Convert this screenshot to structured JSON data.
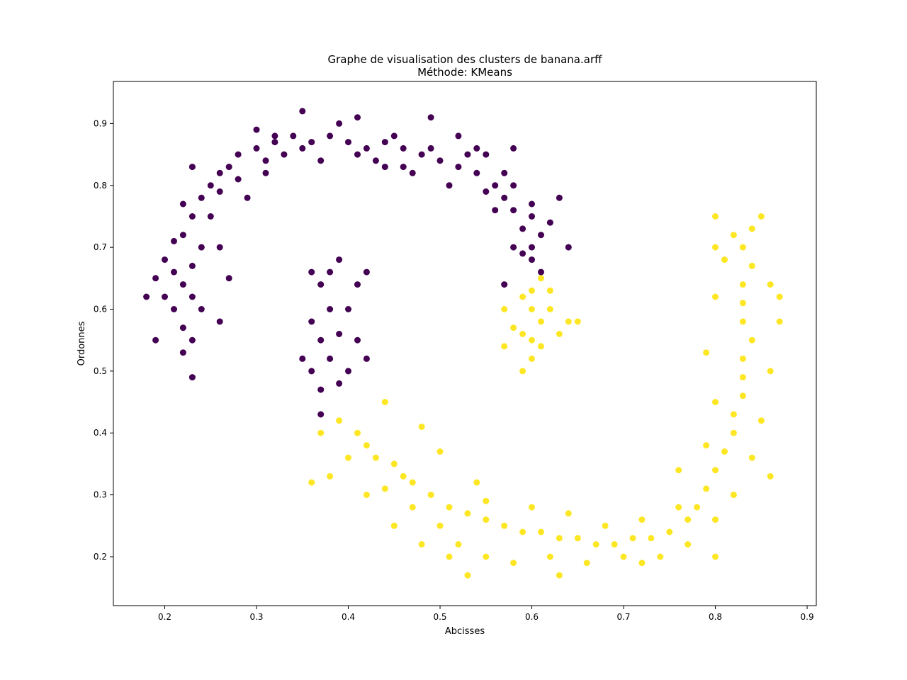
{
  "chart_data": {
    "type": "scatter",
    "title": "Graphe de visualisation des clusters de banana.arff",
    "subtitle": "Méthode: KMeans",
    "xlabel": "Abcisses",
    "ylabel": "Ordonnes",
    "xlim": [
      0.144,
      0.91
    ],
    "ylim": [
      0.121,
      0.968
    ],
    "xticks": [
      0.2,
      0.3,
      0.4,
      0.5,
      0.6,
      0.7,
      0.8,
      0.9
    ],
    "yticks": [
      0.2,
      0.3,
      0.4,
      0.5,
      0.6,
      0.7,
      0.8,
      0.9
    ],
    "grid": false,
    "colors": {
      "cluster_0": "#440154",
      "cluster_1": "#fde725",
      "axes": "#000000",
      "background": "#ffffff"
    },
    "series": [
      {
        "color": "#440154",
        "points": [
          [
            0.21,
            0.6
          ],
          [
            0.22,
            0.57
          ],
          [
            0.23,
            0.55
          ],
          [
            0.22,
            0.64
          ],
          [
            0.21,
            0.66
          ],
          [
            0.23,
            0.62
          ],
          [
            0.24,
            0.6
          ],
          [
            0.22,
            0.53
          ],
          [
            0.2,
            0.62
          ],
          [
            0.19,
            0.65
          ],
          [
            0.23,
            0.67
          ],
          [
            0.24,
            0.7
          ],
          [
            0.22,
            0.72
          ],
          [
            0.23,
            0.75
          ],
          [
            0.24,
            0.78
          ],
          [
            0.25,
            0.8
          ],
          [
            0.26,
            0.82
          ],
          [
            0.27,
            0.83
          ],
          [
            0.28,
            0.85
          ],
          [
            0.3,
            0.86
          ],
          [
            0.32,
            0.87
          ],
          [
            0.34,
            0.88
          ],
          [
            0.36,
            0.87
          ],
          [
            0.38,
            0.88
          ],
          [
            0.4,
            0.87
          ],
          [
            0.42,
            0.86
          ],
          [
            0.44,
            0.87
          ],
          [
            0.46,
            0.86
          ],
          [
            0.48,
            0.85
          ],
          [
            0.5,
            0.84
          ],
          [
            0.52,
            0.83
          ],
          [
            0.54,
            0.82
          ],
          [
            0.56,
            0.8
          ],
          [
            0.57,
            0.78
          ],
          [
            0.58,
            0.76
          ],
          [
            0.59,
            0.73
          ],
          [
            0.6,
            0.7
          ],
          [
            0.6,
            0.68
          ],
          [
            0.61,
            0.66
          ],
          [
            0.59,
            0.69
          ],
          [
            0.26,
            0.79
          ],
          [
            0.28,
            0.81
          ],
          [
            0.31,
            0.84
          ],
          [
            0.33,
            0.85
          ],
          [
            0.35,
            0.86
          ],
          [
            0.37,
            0.84
          ],
          [
            0.39,
            0.9
          ],
          [
            0.41,
            0.85
          ],
          [
            0.43,
            0.84
          ],
          [
            0.45,
            0.88
          ],
          [
            0.47,
            0.82
          ],
          [
            0.49,
            0.86
          ],
          [
            0.51,
            0.8
          ],
          [
            0.53,
            0.85
          ],
          [
            0.55,
            0.79
          ],
          [
            0.57,
            0.82
          ],
          [
            0.58,
            0.8
          ],
          [
            0.6,
            0.75
          ],
          [
            0.61,
            0.72
          ],
          [
            0.62,
            0.74
          ],
          [
            0.18,
            0.62
          ],
          [
            0.19,
            0.55
          ],
          [
            0.2,
            0.68
          ],
          [
            0.21,
            0.71
          ],
          [
            0.22,
            0.77
          ],
          [
            0.25,
            0.75
          ],
          [
            0.26,
            0.7
          ],
          [
            0.27,
            0.65
          ],
          [
            0.26,
            0.58
          ],
          [
            0.23,
            0.49
          ],
          [
            0.23,
            0.83
          ],
          [
            0.3,
            0.89
          ],
          [
            0.35,
            0.92
          ],
          [
            0.41,
            0.91
          ],
          [
            0.49,
            0.91
          ],
          [
            0.55,
            0.85
          ],
          [
            0.58,
            0.86
          ],
          [
            0.63,
            0.78
          ],
          [
            0.64,
            0.7
          ],
          [
            0.57,
            0.64
          ],
          [
            0.37,
            0.64
          ],
          [
            0.38,
            0.6
          ],
          [
            0.39,
            0.56
          ],
          [
            0.38,
            0.52
          ],
          [
            0.39,
            0.48
          ],
          [
            0.37,
            0.55
          ],
          [
            0.36,
            0.5
          ],
          [
            0.4,
            0.6
          ],
          [
            0.41,
            0.55
          ],
          [
            0.4,
            0.5
          ],
          [
            0.38,
            0.66
          ],
          [
            0.39,
            0.68
          ],
          [
            0.36,
            0.58
          ],
          [
            0.37,
            0.47
          ],
          [
            0.41,
            0.64
          ],
          [
            0.42,
            0.52
          ],
          [
            0.35,
            0.52
          ],
          [
            0.36,
            0.66
          ],
          [
            0.42,
            0.66
          ],
          [
            0.37,
            0.43
          ],
          [
            0.31,
            0.82
          ],
          [
            0.29,
            0.78
          ],
          [
            0.32,
            0.88
          ],
          [
            0.44,
            0.83
          ],
          [
            0.46,
            0.83
          ],
          [
            0.52,
            0.88
          ],
          [
            0.54,
            0.86
          ],
          [
            0.56,
            0.76
          ],
          [
            0.6,
            0.77
          ],
          [
            0.58,
            0.7
          ]
        ]
      },
      {
        "color": "#fde725",
        "points": [
          [
            0.6,
            0.6
          ],
          [
            0.61,
            0.58
          ],
          [
            0.59,
            0.56
          ],
          [
            0.62,
            0.6
          ],
          [
            0.6,
            0.63
          ],
          [
            0.58,
            0.57
          ],
          [
            0.61,
            0.54
          ],
          [
            0.63,
            0.56
          ],
          [
            0.6,
            0.52
          ],
          [
            0.57,
            0.6
          ],
          [
            0.64,
            0.58
          ],
          [
            0.62,
            0.63
          ],
          [
            0.59,
            0.62
          ],
          [
            0.6,
            0.55
          ],
          [
            0.65,
            0.58
          ],
          [
            0.57,
            0.54
          ],
          [
            0.61,
            0.65
          ],
          [
            0.59,
            0.5
          ],
          [
            0.39,
            0.42
          ],
          [
            0.41,
            0.4
          ],
          [
            0.42,
            0.38
          ],
          [
            0.43,
            0.36
          ],
          [
            0.45,
            0.35
          ],
          [
            0.46,
            0.33
          ],
          [
            0.47,
            0.32
          ],
          [
            0.49,
            0.3
          ],
          [
            0.51,
            0.28
          ],
          [
            0.53,
            0.27
          ],
          [
            0.55,
            0.26
          ],
          [
            0.57,
            0.25
          ],
          [
            0.59,
            0.24
          ],
          [
            0.61,
            0.24
          ],
          [
            0.63,
            0.23
          ],
          [
            0.65,
            0.23
          ],
          [
            0.67,
            0.22
          ],
          [
            0.69,
            0.22
          ],
          [
            0.71,
            0.23
          ],
          [
            0.73,
            0.23
          ],
          [
            0.75,
            0.24
          ],
          [
            0.77,
            0.26
          ],
          [
            0.78,
            0.28
          ],
          [
            0.79,
            0.31
          ],
          [
            0.8,
            0.34
          ],
          [
            0.81,
            0.37
          ],
          [
            0.82,
            0.4
          ],
          [
            0.82,
            0.43
          ],
          [
            0.83,
            0.46
          ],
          [
            0.83,
            0.49
          ],
          [
            0.83,
            0.52
          ],
          [
            0.84,
            0.55
          ],
          [
            0.83,
            0.58
          ],
          [
            0.83,
            0.61
          ],
          [
            0.83,
            0.64
          ],
          [
            0.84,
            0.67
          ],
          [
            0.83,
            0.7
          ],
          [
            0.82,
            0.72
          ],
          [
            0.84,
            0.73
          ],
          [
            0.81,
            0.68
          ],
          [
            0.4,
            0.36
          ],
          [
            0.44,
            0.31
          ],
          [
            0.47,
            0.28
          ],
          [
            0.5,
            0.25
          ],
          [
            0.52,
            0.22
          ],
          [
            0.55,
            0.2
          ],
          [
            0.58,
            0.19
          ],
          [
            0.62,
            0.2
          ],
          [
            0.66,
            0.19
          ],
          [
            0.7,
            0.2
          ],
          [
            0.74,
            0.2
          ],
          [
            0.77,
            0.22
          ],
          [
            0.8,
            0.26
          ],
          [
            0.82,
            0.3
          ],
          [
            0.84,
            0.36
          ],
          [
            0.85,
            0.42
          ],
          [
            0.86,
            0.5
          ],
          [
            0.87,
            0.58
          ],
          [
            0.86,
            0.64
          ],
          [
            0.8,
            0.62
          ],
          [
            0.37,
            0.4
          ],
          [
            0.38,
            0.33
          ],
          [
            0.42,
            0.3
          ],
          [
            0.45,
            0.25
          ],
          [
            0.48,
            0.22
          ],
          [
            0.51,
            0.2
          ],
          [
            0.53,
            0.17
          ],
          [
            0.55,
            0.29
          ],
          [
            0.6,
            0.28
          ],
          [
            0.64,
            0.27
          ],
          [
            0.68,
            0.25
          ],
          [
            0.72,
            0.26
          ],
          [
            0.76,
            0.28
          ],
          [
            0.79,
            0.38
          ],
          [
            0.8,
            0.45
          ],
          [
            0.79,
            0.53
          ],
          [
            0.8,
            0.7
          ],
          [
            0.8,
            0.75
          ],
          [
            0.85,
            0.75
          ],
          [
            0.87,
            0.62
          ],
          [
            0.36,
            0.32
          ],
          [
            0.44,
            0.45
          ],
          [
            0.48,
            0.41
          ],
          [
            0.5,
            0.37
          ],
          [
            0.54,
            0.32
          ],
          [
            0.63,
            0.17
          ],
          [
            0.72,
            0.19
          ],
          [
            0.76,
            0.34
          ],
          [
            0.8,
            0.2
          ],
          [
            0.86,
            0.33
          ]
        ]
      }
    ]
  }
}
